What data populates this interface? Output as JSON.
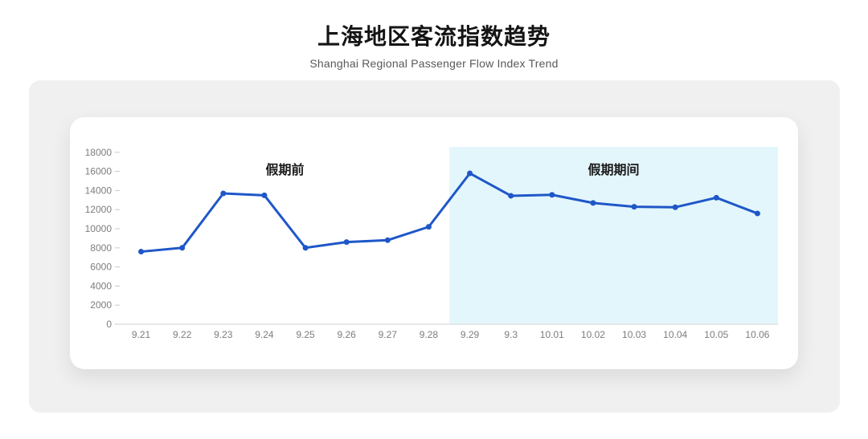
{
  "page": {
    "title": "上海地区客流指数趋势",
    "subtitle": "Shanghai Regional Passenger Flow Index Trend"
  },
  "chart_data": {
    "type": "line",
    "title": "上海地区客流指数趋势",
    "subtitle": "Shanghai Regional Passenger Flow Index Trend",
    "categories": [
      "9.21",
      "9.22",
      "9.23",
      "9.24",
      "9.25",
      "9.26",
      "9.27",
      "9.28",
      "9.29",
      "9.3",
      "10.01",
      "10.02",
      "10.03",
      "10.04",
      "10.05",
      "10.06"
    ],
    "values": [
      7600,
      8000,
      13700,
      13500,
      8000,
      8600,
      8800,
      10200,
      15800,
      13450,
      13550,
      12700,
      12300,
      12250,
      13250,
      11600
    ],
    "xlabel": "",
    "ylabel": "",
    "ylim": [
      0,
      18000
    ],
    "ytick_step": 2000,
    "grid": false,
    "legend_position": "none",
    "annotations": [
      {
        "text": "假期前",
        "region": "before-holiday"
      },
      {
        "text": "假期期间",
        "region": "holiday"
      }
    ],
    "highlight": {
      "start_index": 8,
      "covers_categories": [
        "9.29",
        "9.3",
        "10.01",
        "10.02",
        "10.03",
        "10.04",
        "10.05",
        "10.06"
      ],
      "color": "#e3f6fc"
    },
    "colors": {
      "line": "#1f57c8",
      "point": "#1f57c8",
      "highlight": "#e3f6fc",
      "panel_bg": "#f0f0f0",
      "card_bg": "#ffffff",
      "axis_text": "#7d7d7d",
      "axis_line": "#e0e0e0",
      "tick": "#c9c9c9",
      "title_text": "#141414",
      "subtitle_text": "#595959",
      "annotation_text": "#1a1a1a"
    }
  }
}
